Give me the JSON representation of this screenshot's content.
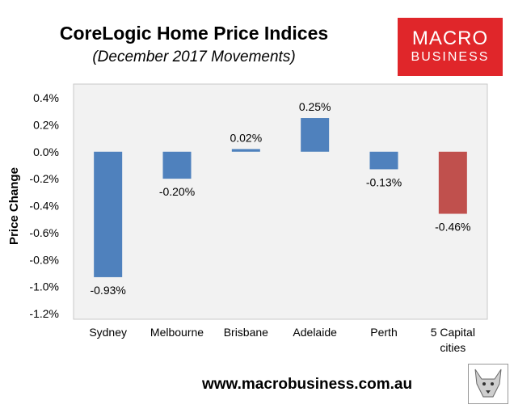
{
  "header": {
    "title": "CoreLogic Home Price Indices",
    "subtitle": "(December 2017 Movements)"
  },
  "logo": {
    "line1": "MACRO",
    "line2": "BUSINESS",
    "color": "#e0262a"
  },
  "footer": {
    "website": "www.macrobusiness.com.au"
  },
  "mascot_icon": "wolf-icon",
  "colors": {
    "bar": "#4f81bd",
    "highlight_bar": "#c0504d",
    "plot_bg": "#f2f2f2"
  },
  "chart_data": {
    "type": "bar",
    "categories": [
      "Sydney",
      "Melbourne",
      "Brisbane",
      "Adelaide",
      "Perth",
      "5 Capital cities"
    ],
    "values": [
      -0.93,
      -0.2,
      0.02,
      0.25,
      -0.13,
      -0.46
    ],
    "data_labels": [
      "-0.93%",
      "-0.20%",
      "0.02%",
      "0.25%",
      "-0.13%",
      "-0.46%"
    ],
    "ylabel": "Price Change",
    "ylim": [
      -1.2,
      0.4
    ],
    "yticks": [
      0.4,
      0.2,
      0.0,
      -0.2,
      -0.4,
      -0.6,
      -0.8,
      -1.0,
      -1.2
    ],
    "ytick_labels": [
      "0.4%",
      "0.2%",
      "0.0%",
      "-0.2%",
      "-0.4%",
      "-0.6%",
      "-0.8%",
      "-1.0%",
      "-1.2%"
    ],
    "highlight_index": 5,
    "grid": false,
    "legend": "none"
  }
}
